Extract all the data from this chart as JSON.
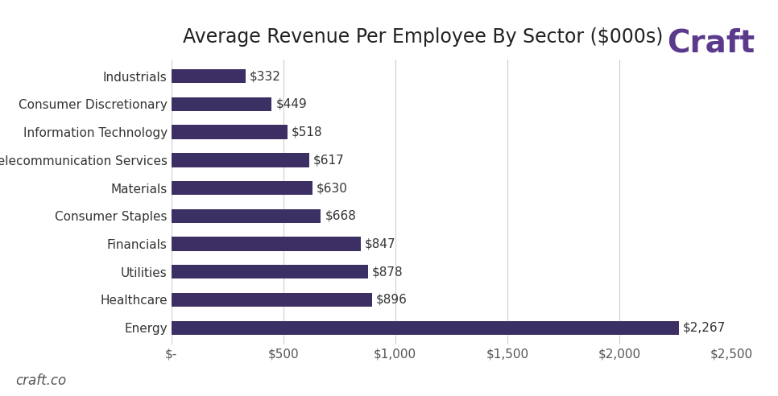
{
  "title": "Average Revenue Per Employee By Sector ($000s)",
  "categories": [
    "Energy",
    "Healthcare",
    "Utilities",
    "Financials",
    "Consumer Staples",
    "Materials",
    "Telecommunication Services",
    "Information Technology",
    "Consumer Discretionary",
    "Industrials"
  ],
  "values": [
    2267,
    896,
    878,
    847,
    668,
    630,
    617,
    518,
    449,
    332
  ],
  "bar_color": "#3b2f63",
  "value_labels": [
    "$2,267",
    "$896",
    "$878",
    "$847",
    "$668",
    "$630",
    "$617",
    "$518",
    "$449",
    "$332"
  ],
  "xlim": [
    0,
    2500
  ],
  "xtick_values": [
    0,
    500,
    1000,
    1500,
    2000,
    2500
  ],
  "xtick_labels": [
    "$-",
    "$500",
    "$1,000",
    "$1,500",
    "$2,000",
    "$2,500"
  ],
  "background_color": "#ffffff",
  "grid_color": "#d0d0d0",
  "title_fontsize": 17,
  "label_fontsize": 11,
  "value_fontsize": 11,
  "tick_fontsize": 11,
  "craft_text": "Craft",
  "craft_color": "#5b3a8c",
  "watermark_text": "craft.co",
  "watermark_color": "#555555",
  "bar_height": 0.5
}
